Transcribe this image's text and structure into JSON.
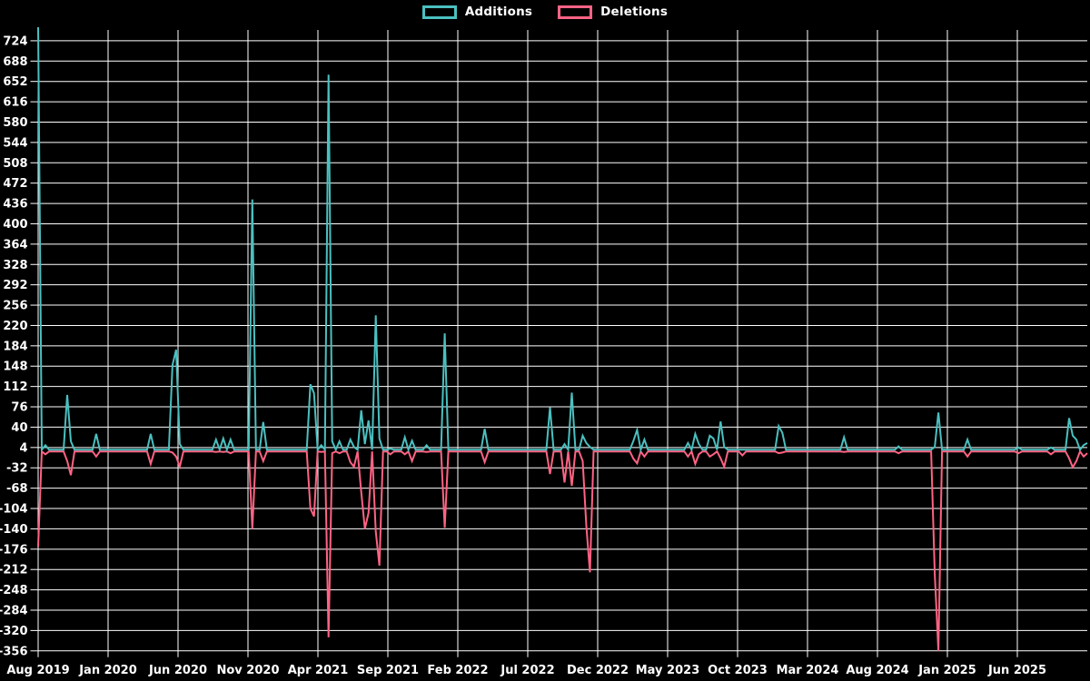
{
  "chart_data": {
    "type": "line",
    "title": "",
    "legend_position": "top",
    "grid": true,
    "background_color": "#000000",
    "grid_color": "#ffffff",
    "text_color": "#ffffff",
    "x_tick_labels": [
      "Aug 2019",
      "Jan 2020",
      "Jun 2020",
      "Nov 2020",
      "Apr 2021",
      "Sep 2021",
      "Feb 2022",
      "Jul 2022",
      "Dec 2022",
      "May 2023",
      "Oct 2023",
      "Mar 2024",
      "Aug 2024",
      "Jan 2025",
      "Jun 2025"
    ],
    "y_tick_labels": [
      724,
      688,
      652,
      616,
      580,
      544,
      508,
      472,
      436,
      400,
      364,
      328,
      292,
      256,
      220,
      184,
      148,
      112,
      76,
      40,
      4,
      -32,
      -68,
      -104,
      -140,
      -176,
      -212,
      -248,
      -284,
      -320,
      -356
    ],
    "y_min": -356,
    "y_max": 724,
    "y_step": 36,
    "weeks": 290,
    "baseline": {
      "additions": 0,
      "deletions": -3
    },
    "series": [
      {
        "name": "Additions",
        "color": "#4bc0c0"
      },
      {
        "name": "Deletions",
        "color": "#ff6384"
      }
    ],
    "spike_format": "[week_index, additions, deletions]",
    "spikes": [
      [
        0,
        748,
        -172
      ],
      [
        2,
        8,
        -8
      ],
      [
        8,
        97,
        -20
      ],
      [
        9,
        15,
        -45
      ],
      [
        16,
        28,
        -12
      ],
      [
        31,
        28,
        -25
      ],
      [
        37,
        150,
        -5
      ],
      [
        38,
        177,
        -12
      ],
      [
        39,
        10,
        -30
      ],
      [
        49,
        18,
        -4
      ],
      [
        51,
        20,
        -4
      ],
      [
        53,
        18,
        -6
      ],
      [
        59,
        443,
        -140
      ],
      [
        62,
        49,
        -20
      ],
      [
        75,
        116,
        -104
      ],
      [
        76,
        100,
        -118
      ],
      [
        78,
        8,
        -4
      ],
      [
        80,
        664,
        -332
      ],
      [
        81,
        15,
        -6
      ],
      [
        83,
        15,
        -6
      ],
      [
        86,
        18,
        -22
      ],
      [
        87,
        5,
        -30
      ],
      [
        89,
        70,
        -75
      ],
      [
        90,
        10,
        -140
      ],
      [
        91,
        52,
        -112
      ],
      [
        93,
        238,
        -145
      ],
      [
        94,
        20,
        -205
      ],
      [
        97,
        2,
        -8
      ],
      [
        101,
        22,
        -8
      ],
      [
        103,
        16,
        -20
      ],
      [
        107,
        8,
        -4
      ],
      [
        112,
        206,
        -138
      ],
      [
        123,
        37,
        -22
      ],
      [
        141,
        75,
        -43
      ],
      [
        145,
        10,
        -58
      ],
      [
        147,
        101,
        -64
      ],
      [
        150,
        25,
        -20
      ],
      [
        151,
        12,
        -135
      ],
      [
        152,
        5,
        -217
      ],
      [
        164,
        16,
        -16
      ],
      [
        165,
        35,
        -24
      ],
      [
        167,
        18,
        -12
      ],
      [
        179,
        12,
        -12
      ],
      [
        181,
        28,
        -25
      ],
      [
        182,
        10,
        -8
      ],
      [
        185,
        25,
        -12
      ],
      [
        186,
        20,
        -8
      ],
      [
        188,
        50,
        -15
      ],
      [
        189,
        5,
        -30
      ],
      [
        194,
        0,
        -10
      ],
      [
        204,
        42,
        -6
      ],
      [
        205,
        30,
        -5
      ],
      [
        222,
        22,
        -4
      ],
      [
        237,
        6,
        -6
      ],
      [
        247,
        5,
        -220
      ],
      [
        248,
        66,
        -356
      ],
      [
        256,
        18,
        -12
      ],
      [
        270,
        4,
        -6
      ],
      [
        279,
        4,
        -8
      ],
      [
        284,
        56,
        -15
      ],
      [
        285,
        25,
        -31
      ],
      [
        286,
        18,
        -20
      ],
      [
        288,
        8,
        -12
      ],
      [
        289,
        12,
        -6
      ]
    ]
  }
}
